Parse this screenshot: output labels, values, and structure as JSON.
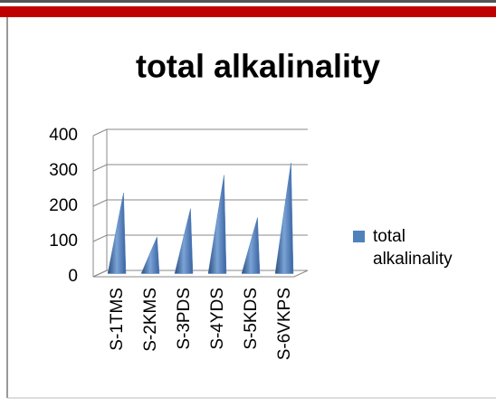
{
  "chart_data": {
    "type": "cone",
    "title": "total alkalinality",
    "categories": [
      "S-1TMS",
      "S-2KMS",
      "S-3PDS",
      "S-4YDS",
      "S-5KDS",
      "S-6VKPS"
    ],
    "series": [
      {
        "name": "total alkalinality",
        "color": "#4f81bd",
        "values": [
          220,
          95,
          175,
          270,
          150,
          305
        ]
      }
    ],
    "ylim": [
      0,
      400
    ],
    "yticks": [
      0,
      100,
      200,
      300,
      400
    ],
    "grid": true,
    "legend": "right"
  }
}
